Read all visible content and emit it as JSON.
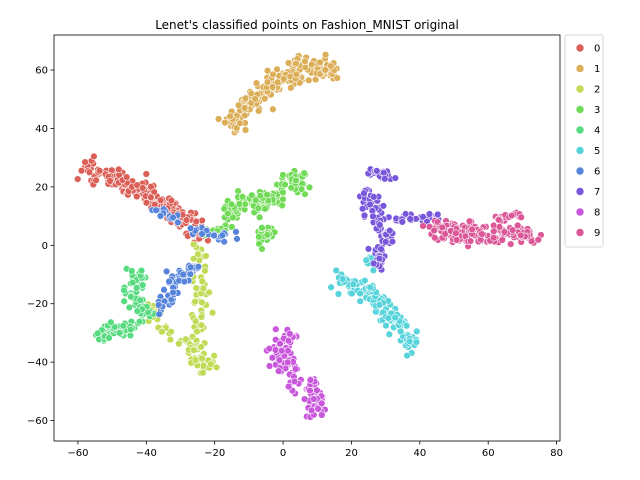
{
  "chart_data": {
    "type": "scatter",
    "title": "Lenet's classified points on Fashion_MNIST original",
    "xlabel": "",
    "ylabel": "",
    "xlim": [
      -67,
      81
    ],
    "ylim": [
      -67,
      72
    ],
    "x_ticks": [
      -60,
      -40,
      -20,
      0,
      20,
      40,
      60,
      80
    ],
    "y_ticks": [
      -60,
      -40,
      -20,
      0,
      20,
      40,
      60
    ],
    "x_tick_labels": [
      "−60",
      "−40",
      "−20",
      "0",
      "20",
      "40",
      "60",
      "80"
    ],
    "y_tick_labels": [
      "−60",
      "−40",
      "−20",
      "0",
      "20",
      "40",
      "60"
    ],
    "grid": false,
    "legend_position": "outside-upper-right",
    "series": [
      {
        "name": "0",
        "color": "#db5f57",
        "clusters": [
          {
            "path": [
              [
                -58,
                27
              ],
              [
                -50,
                23
              ],
              [
                -40,
                18
              ],
              [
                -33,
                12
              ],
              [
                -26,
                6
              ],
              [
                -22,
                3
              ]
            ],
            "spread": 3.2,
            "count": 190
          }
        ]
      },
      {
        "name": "1",
        "color": "#dbae57",
        "clusters": [
          {
            "path": [
              [
                -16,
                41
              ],
              [
                -10,
                48
              ],
              [
                -4,
                54
              ],
              [
                2,
                58
              ],
              [
                8,
                60
              ],
              [
                15,
                60
              ]
            ],
            "spread": 3.2,
            "count": 175
          },
          {
            "path": [
              [
                2,
                62
              ],
              [
                6,
                63
              ]
            ],
            "spread": 1.5,
            "count": 12
          }
        ]
      },
      {
        "name": "2",
        "color": "#c1db57",
        "clusters": [
          {
            "path": [
              [
                -24,
                -1
              ],
              [
                -25,
                -10
              ],
              [
                -24,
                -20
              ],
              [
                -25,
                -30
              ],
              [
                -26,
                -40
              ]
            ],
            "spread": 2.3,
            "count": 60
          },
          {
            "path": [
              [
                -35,
                -28
              ],
              [
                -30,
                -33
              ],
              [
                -26,
                -36
              ],
              [
                -22,
                -42
              ]
            ],
            "spread": 2.5,
            "count": 45
          },
          {
            "path": [
              [
                -37,
                -25
              ],
              [
                -40,
                -20
              ],
              [
                -36,
                -28
              ]
            ],
            "spread": 2.0,
            "count": 18
          }
        ]
      },
      {
        "name": "3",
        "color": "#71db57",
        "clusters": [
          {
            "path": [
              [
                -17,
                10
              ],
              [
                -10,
                16
              ],
              [
                -5,
                14
              ],
              [
                0,
                18
              ],
              [
                5,
                24
              ]
            ],
            "spread": 3.2,
            "count": 130
          },
          {
            "path": [
              [
                -6,
                2
              ],
              [
                -4,
                6
              ],
              [
                -8,
                0
              ]
            ],
            "spread": 2.0,
            "count": 25
          },
          {
            "path": [
              [
                -22,
                5
              ],
              [
                -16,
                7
              ]
            ],
            "spread": 1.5,
            "count": 10
          }
        ]
      },
      {
        "name": "4",
        "color": "#57db80",
        "clusters": [
          {
            "path": [
              [
                -42,
                -8
              ],
              [
                -44,
                -16
              ],
              [
                -40,
                -24
              ]
            ],
            "spread": 3.0,
            "count": 60
          },
          {
            "path": [
              [
                -54,
                -32
              ],
              [
                -50,
                -28
              ],
              [
                -45,
                -30
              ],
              [
                -42,
                -26
              ]
            ],
            "spread": 2.2,
            "count": 55
          }
        ]
      },
      {
        "name": "5",
        "color": "#57d3db",
        "clusters": [
          {
            "path": [
              [
                17,
                -11
              ],
              [
                22,
                -15
              ],
              [
                27,
                -18
              ],
              [
                31,
                -24
              ],
              [
                36,
                -30
              ],
              [
                38,
                -35
              ]
            ],
            "spread": 2.6,
            "count": 150
          },
          {
            "path": [
              [
                24,
                -4
              ],
              [
                27,
                -8
              ]
            ],
            "spread": 1.5,
            "count": 10
          }
        ]
      },
      {
        "name": "6",
        "color": "#5784db",
        "clusters": [
          {
            "path": [
              [
                -35,
                -22
              ],
              [
                -32,
                -12
              ],
              [
                -30,
                -10
              ],
              [
                -26,
                -8
              ]
            ],
            "spread": 2.4,
            "count": 55
          },
          {
            "path": [
              [
                -27,
                6
              ],
              [
                -24,
                4
              ],
              [
                -18,
                3
              ],
              [
                -14,
                4
              ]
            ],
            "spread": 1.4,
            "count": 22
          },
          {
            "path": [
              [
                -38,
                12
              ],
              [
                -34,
                10
              ],
              [
                -30,
                8
              ]
            ],
            "spread": 1.5,
            "count": 14
          }
        ]
      },
      {
        "name": "7",
        "color": "#7957db",
        "clusters": [
          {
            "path": [
              [
                24,
                18
              ],
              [
                27,
                12
              ],
              [
                29,
                6
              ],
              [
                30,
                2
              ],
              [
                27,
                -8
              ]
            ],
            "spread": 2.6,
            "count": 90
          },
          {
            "path": [
              [
                26,
                25
              ],
              [
                34,
                24
              ]
            ],
            "spread": 2.0,
            "count": 25
          },
          {
            "path": [
              [
                30,
                8
              ],
              [
                36,
                9
              ],
              [
                42,
                9
              ],
              [
                46,
                10
              ]
            ],
            "spread": 1.5,
            "count": 25
          }
        ]
      },
      {
        "name": "8",
        "color": "#c957db",
        "clusters": [
          {
            "path": [
              [
                2,
                -31
              ],
              [
                -2,
                -36
              ],
              [
                2,
                -42
              ],
              [
                4,
                -48
              ],
              [
                9,
                -52
              ],
              [
                9,
                -58
              ]
            ],
            "spread": 2.8,
            "count": 120
          },
          {
            "path": [
              [
                8,
                -46
              ],
              [
                10,
                -48
              ]
            ],
            "spread": 1.2,
            "count": 10
          }
        ]
      },
      {
        "name": "9",
        "color": "#db5797",
        "clusters": [
          {
            "path": [
              [
                44,
                7
              ],
              [
                52,
                4
              ],
              [
                60,
                4
              ],
              [
                68,
                4
              ],
              [
                74,
                4
              ]
            ],
            "spread": 3.0,
            "count": 190
          },
          {
            "path": [
              [
                62,
                8
              ],
              [
                66,
                10
              ],
              [
                70,
                10
              ]
            ],
            "spread": 1.8,
            "count": 20
          }
        ]
      }
    ]
  }
}
